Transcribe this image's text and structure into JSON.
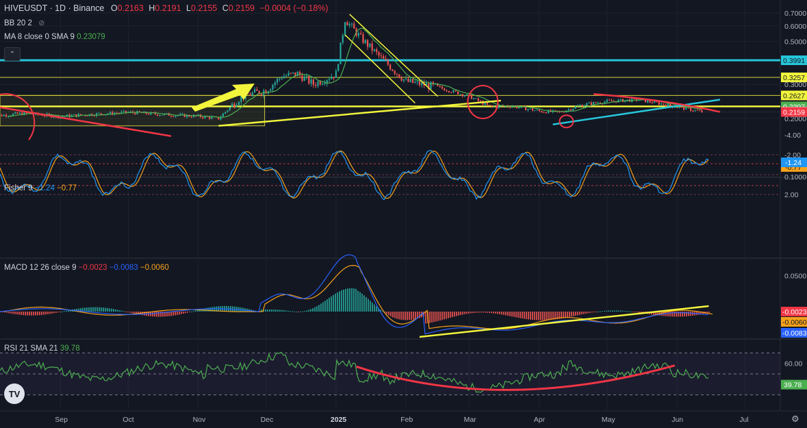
{
  "header": {
    "symbol": "HIVEUSDT · 1D · Binance",
    "o_label": "O",
    "o": "0.2163",
    "h_label": "H",
    "h": "0.2191",
    "l_label": "L",
    "l": "0.2155",
    "c_label": "C",
    "c": "0.2159",
    "change": "−0.0004 (−0.18%)"
  },
  "indicators": {
    "bb": "BB 20 2",
    "ma_label": "MA 8 close 0 SMA 9",
    "ma_value": "0.23079",
    "fisher_label": "Fisher 9",
    "fisher_v1": "−1.24",
    "fisher_v2": "−0.77",
    "macd_label": "MACD 12 26 close 9",
    "macd_v1": "−0.0023",
    "macd_v2": "−0.0083",
    "macd_v3": "−0.0060",
    "rsi_label": "RSI 21 SMA 21",
    "rsi_value": "39.78"
  },
  "colors": {
    "bg": "#131722",
    "up": "#26a69a",
    "down": "#ef5350",
    "yellow": "#f2f53b",
    "cyan": "#26c6da",
    "pink": "#f23645",
    "ma": "#4caf50",
    "fisher1": "#2196f3",
    "fisher2": "#f7a21b",
    "rsi": "#4caf50"
  },
  "axes": {
    "price_ticks": [
      "0.7000",
      "0.6000",
      "0.5000",
      "0.4000",
      "0.3000",
      "0.2000",
      "0.1000"
    ],
    "fisher_ticks": [
      "2.00",
      "-2.00",
      "-4.00"
    ],
    "macd_ticks": [
      "0.0500"
    ],
    "rsi_ticks": [
      "60.00"
    ],
    "time_labels": [
      "Sep",
      "Oct",
      "Nov",
      "Dec",
      "2025",
      "Feb",
      "Mar",
      "Apr",
      "May",
      "Jun",
      "Jul"
    ]
  },
  "price_tags": [
    {
      "text": "0.3991",
      "bg": "#26c6da",
      "fg": "#131722",
      "value": 0.3991
    },
    {
      "text": "0.3257",
      "bg": "#f2f53b",
      "fg": "#131722",
      "value": 0.3257
    },
    {
      "text": "0.2627",
      "bg": "#f2f53b",
      "fg": "#131722",
      "value": 0.2627
    },
    {
      "text": "0.2307",
      "bg": "#4caf50",
      "fg": "#ffffff",
      "value": 0.2307
    },
    {
      "text": "0.2169",
      "bg": "#e0e3eb",
      "fg": "#131722",
      "value": 0.2169
    },
    {
      "text": "0.2159",
      "bg": "#f23645",
      "fg": "#ffffff",
      "value": 0.2159
    }
  ],
  "fisher_tags": [
    {
      "text": "-0.77",
      "bg": "#f7a21b",
      "fg": "#131722",
      "value": -0.77
    },
    {
      "text": "-1.24",
      "bg": "#2196f3",
      "fg": "#ffffff",
      "value": -1.24
    }
  ],
  "macd_tags": [
    {
      "text": "-0.0023",
      "bg": "#f23645",
      "fg": "#ffffff",
      "value": -0.0023
    },
    {
      "text": "-0.0060",
      "bg": "#f7a21b",
      "fg": "#131722",
      "value": -0.006
    },
    {
      "text": "-0.0083",
      "bg": "#2962ff",
      "fg": "#ffffff",
      "value": -0.0083
    }
  ],
  "rsi_tags": [
    {
      "text": "39.78",
      "bg": "#4caf50",
      "fg": "#ffffff",
      "value": 39.78
    }
  ],
  "tv_logo": "TV",
  "chart_data": [
    {
      "type": "candlestick",
      "symbol": "HIVEUSDT",
      "interval": "1D",
      "log_scale": true,
      "ylim": [
        0.1,
        0.7
      ],
      "last_close": 0.2159,
      "x": [
        "2024-08-01",
        "2024-08-15",
        "2024-09-01",
        "2024-09-15",
        "2024-10-01",
        "2024-10-15",
        "2024-11-01",
        "2024-11-10",
        "2024-11-20",
        "2024-12-01",
        "2024-12-08",
        "2024-12-15",
        "2024-12-22",
        "2025-01-01",
        "2025-01-05",
        "2025-01-12",
        "2025-01-20",
        "2025-02-01",
        "2025-02-15",
        "2025-03-01",
        "2025-03-10",
        "2025-03-20",
        "2025-04-01",
        "2025-04-10",
        "2025-04-20",
        "2025-05-01",
        "2025-05-15",
        "2025-06-01",
        "2025-06-12"
      ],
      "close": [
        0.205,
        0.212,
        0.205,
        0.21,
        0.215,
        0.21,
        0.205,
        0.2,
        0.26,
        0.28,
        0.33,
        0.34,
        0.3,
        0.34,
        0.65,
        0.52,
        0.42,
        0.31,
        0.29,
        0.26,
        0.23,
        0.232,
        0.218,
        0.215,
        0.235,
        0.245,
        0.25,
        0.23,
        0.2159
      ]
    },
    {
      "type": "line",
      "name": "Fisher 9",
      "ylim": [
        -4,
        3
      ],
      "last": [
        -1.24,
        -0.77
      ]
    },
    {
      "type": "bar",
      "name": "MACD 12 26 close 9",
      "last": [
        -0.0023,
        -0.0083,
        -0.006
      ]
    },
    {
      "type": "line",
      "name": "RSI 21 SMA 21",
      "ylim": [
        20,
        80
      ],
      "last": 39.78
    }
  ]
}
